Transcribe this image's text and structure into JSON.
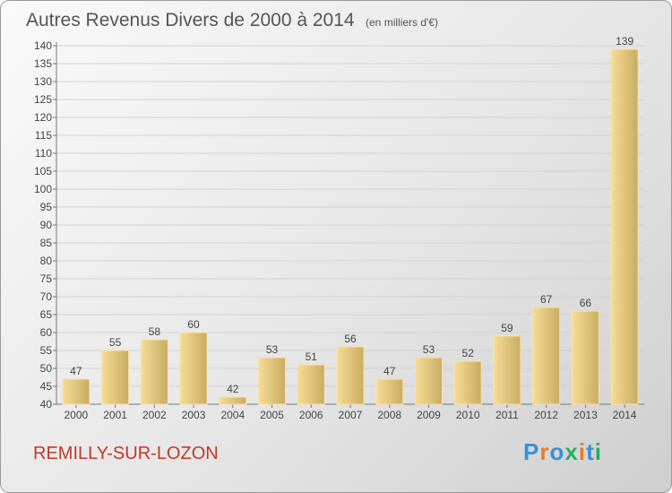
{
  "chart_data": {
    "type": "bar",
    "title": "Autres Revenus Divers de 2000 à 2014",
    "subtitle": "(en milliers d'€)",
    "categories": [
      "2000",
      "2001",
      "2002",
      "2003",
      "2004",
      "2005",
      "2006",
      "2007",
      "2008",
      "2009",
      "2010",
      "2011",
      "2012",
      "2013",
      "2014"
    ],
    "values": [
      47,
      55,
      58,
      60,
      42,
      53,
      51,
      56,
      47,
      53,
      52,
      59,
      67,
      66,
      139
    ],
    "ylim": [
      40,
      140
    ],
    "yticks": [
      40,
      45,
      50,
      55,
      60,
      65,
      70,
      75,
      80,
      85,
      90,
      95,
      100,
      105,
      110,
      115,
      120,
      125,
      130,
      135,
      140
    ],
    "grid": true,
    "bar_color": "#e9cf84"
  },
  "footer": {
    "location": "REMILLY-SUR-LOZON",
    "logo": "Proxiti"
  }
}
